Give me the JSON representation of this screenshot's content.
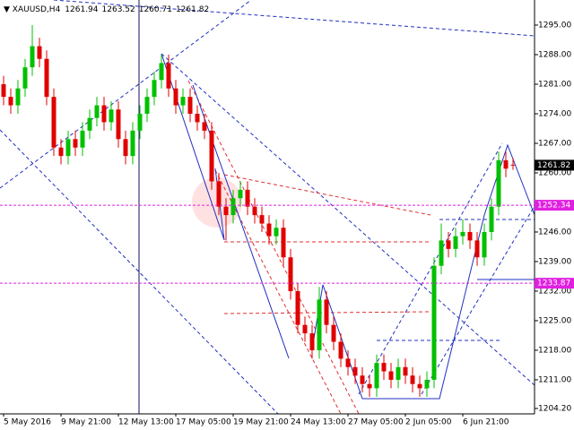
{
  "chart_data": {
    "type": "candlestick",
    "title": "XAUUSD,H4",
    "open": [
      1281,
      1278,
      1276,
      1280,
      1285,
      1290,
      1287,
      1278,
      1266,
      1264,
      1268,
      1266,
      1270,
      1273,
      1276,
      1272,
      1275,
      1268,
      1264,
      1270,
      1274,
      1278,
      1282,
      1286,
      1280,
      1276,
      1278,
      1274,
      1272,
      1270,
      1258,
      1252,
      1250,
      1254,
      1256,
      1252,
      1250,
      1248,
      1245,
      1247,
      1240,
      1232,
      1224,
      1222,
      1218,
      1230,
      1224,
      1220,
      1216,
      1214,
      1212,
      1210,
      1209,
      1215,
      1213,
      1211,
      1214,
      1212,
      1210,
      1209,
      1211,
      1238,
      1244,
      1242,
      1245,
      1246,
      1244,
      1240,
      1246,
      1252,
      1263,
      1261.94
    ],
    "high": [
      1283,
      1280,
      1282,
      1287,
      1295,
      1292,
      1289,
      1280,
      1268,
      1270,
      1270,
      1272,
      1275,
      1278,
      1278,
      1277,
      1277,
      1270,
      1272,
      1276,
      1280,
      1284,
      1288,
      1288,
      1282,
      1280,
      1280,
      1276,
      1274,
      1272,
      1260,
      1254,
      1256,
      1258,
      1258,
      1254,
      1252,
      1250,
      1249,
      1249,
      1242,
      1234,
      1226,
      1224,
      1233,
      1232,
      1226,
      1222,
      1218,
      1216,
      1214,
      1212,
      1217,
      1217,
      1215,
      1216,
      1216,
      1214,
      1212,
      1213,
      1240,
      1248,
      1246,
      1247,
      1249,
      1248,
      1246,
      1248,
      1254,
      1265,
      1265,
      1263.52
    ],
    "low": [
      1276,
      1274,
      1274,
      1278,
      1283,
      1285,
      1276,
      1264,
      1262,
      1262,
      1264,
      1264,
      1268,
      1271,
      1270,
      1270,
      1266,
      1262,
      1262,
      1268,
      1272,
      1276,
      1280,
      1278,
      1274,
      1274,
      1272,
      1270,
      1268,
      1256,
      1250,
      1244,
      1248,
      1252,
      1250,
      1248,
      1246,
      1243,
      1243,
      1238,
      1230,
      1222,
      1220,
      1216,
      1216,
      1222,
      1218,
      1214,
      1212,
      1210,
      1208,
      1207,
      1207,
      1211,
      1209,
      1209,
      1210,
      1208,
      1207,
      1207,
      1209,
      1236,
      1240,
      1240,
      1243,
      1242,
      1238,
      1238,
      1244,
      1250,
      1259,
      1260.71
    ],
    "close": [
      1278,
      1276,
      1280,
      1285,
      1290,
      1287,
      1278,
      1266,
      1264,
      1268,
      1266,
      1270,
      1273,
      1276,
      1272,
      1275,
      1268,
      1264,
      1270,
      1274,
      1278,
      1282,
      1286,
      1280,
      1276,
      1278,
      1274,
      1272,
      1270,
      1258,
      1252,
      1250,
      1254,
      1256,
      1252,
      1250,
      1248,
      1245,
      1247,
      1240,
      1232,
      1224,
      1222,
      1218,
      1230,
      1224,
      1220,
      1216,
      1214,
      1212,
      1210,
      1209,
      1215,
      1213,
      1211,
      1214,
      1212,
      1210,
      1209,
      1211,
      1238,
      1244,
      1242,
      1245,
      1246,
      1244,
      1240,
      1246,
      1252,
      1263,
      1261,
      1261.82
    ],
    "up_color": "#00c000",
    "down_color": "#e00000",
    "ylim": [
      1202.93,
      1300.94
    ],
    "yticks": [
      {
        "value": 1295,
        "label": "1295.00"
      },
      {
        "value": 1288,
        "label": "1288.00"
      },
      {
        "value": 1281,
        "label": "1281.00"
      },
      {
        "value": 1274,
        "label": "1274.00"
      },
      {
        "value": 1267,
        "label": "1267.00"
      },
      {
        "value": 1260,
        "label": "1260.00"
      },
      {
        "value": 1246,
        "label": "1246.00"
      },
      {
        "value": 1239,
        "label": "1239.00"
      },
      {
        "value": 1232,
        "label": "1232.00"
      },
      {
        "value": 1225,
        "label": "1225.00"
      },
      {
        "value": 1218,
        "label": "1218.00"
      },
      {
        "value": 1211,
        "label": "1211.00"
      },
      {
        "value": 1204.2,
        "label": "1204.20"
      }
    ],
    "xlabels": [
      "5 May 2016",
      "9 May 21:00",
      "12 May 13:00",
      "17 May 05:00",
      "19 May 21:00",
      "24 May 13:00",
      "27 May 05:00",
      "2 Jun 05:00",
      "6 Jun 21:00"
    ],
    "levels": [
      1252.34,
      1233.87
    ],
    "level_color": "#e020e0"
  }
}
